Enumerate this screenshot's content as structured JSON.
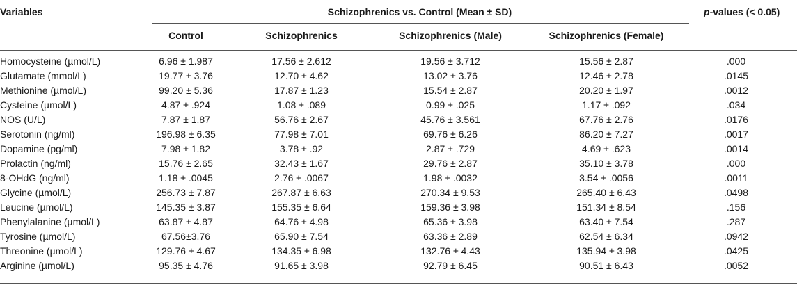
{
  "header": {
    "variables": "Variables",
    "group": "Schizophrenics vs. Control (Mean ± SD)",
    "pvalues_italic": "p",
    "pvalues_rest": "-values (< 0.05)",
    "columns": [
      "Control",
      "Schizophrenics",
      "Schizophrenics (Male)",
      "Schizophrenics (Female)"
    ]
  },
  "rows": [
    {
      "variable": "Homocysteine (µmol/L)",
      "control": "6.96 ± 1.987",
      "schizo": "17.56 ± 2.612",
      "male": "19.56 ± 3.712",
      "female": "15.56 ± 2.87",
      "p": ".000"
    },
    {
      "variable": "Glutamate (mmol/L)",
      "control": "19.77 ± 3.76",
      "schizo": "12.70 ± 4.62",
      "male": "13.02 ± 3.76",
      "female": "12.46 ± 2.78",
      "p": ".0145"
    },
    {
      "variable": "Methionine (µmol/L)",
      "control": "99.20 ± 5.36",
      "schizo": "17.87 ± 1.23",
      "male": "15.54 ± 2.87",
      "female": "20.20 ± 1.97",
      "p": ".0012"
    },
    {
      "variable": "Cysteine (µmol/L)",
      "control": "4.87 ± .924",
      "schizo": "1.08 ± .089",
      "male": "0.99 ± .025",
      "female": "1.17 ± .092",
      "p": ".034"
    },
    {
      "variable": "NOS (U/L)",
      "control": "7.87 ± 1.87",
      "schizo": "56.76 ± 2.67",
      "male": "45.76 ± 3.561",
      "female": "67.76 ± 2.76",
      "p": ".0176"
    },
    {
      "variable": "Serotonin (ng/ml)",
      "control": "196.98 ± 6.35",
      "schizo": "77.98 ± 7.01",
      "male": "69.76 ± 6.26",
      "female": "86.20 ± 7.27",
      "p": ".0017"
    },
    {
      "variable": "Dopamine (pg/ml)",
      "control": "7.98 ± 1.82",
      "schizo": "3.78 ± .92",
      "male": "2.87 ± .729",
      "female": "4.69 ± .623",
      "p": ".0014"
    },
    {
      "variable": "Prolactin (ng/ml)",
      "control": "15.76 ± 2.65",
      "schizo": "32.43 ± 1.67",
      "male": "29.76 ± 2.87",
      "female": "35.10 ± 3.78",
      "p": ".000"
    },
    {
      "variable": "8-OHdG (ng/ml)",
      "control": "1.18 ± .0045",
      "schizo": "2.76 ± .0067",
      "male": "1.98 ± .0032",
      "female": "3.54 ± .0056",
      "p": ".0011"
    },
    {
      "variable": "Glycine (µmol/L)",
      "control": "256.73 ± 7.87",
      "schizo": "267.87 ± 6.63",
      "male": "270.34 ± 9.53",
      "female": "265.40 ± 6.43",
      "p": ".0498"
    },
    {
      "variable": "Leucine (µmol/L)",
      "control": "145.35 ± 3.87",
      "schizo": "155.35 ± 6.64",
      "male": "159.36 ± 3.98",
      "female": "151.34 ± 8.54",
      "p": ".156"
    },
    {
      "variable": "Phenylalanine (µmol/L)",
      "control": "63.87 ± 4.87",
      "schizo": "64.76 ± 4.98",
      "male": "65.36 ± 3.98",
      "female": "63.40 ± 7.54",
      "p": ".287"
    },
    {
      "variable": "Tyrosine (µmol/L)",
      "control": "67.56±3.76",
      "schizo": "65.90 ± 7.54",
      "male": "63.36 ± 2.89",
      "female": "62.54 ± 6.34",
      "p": ".0942"
    },
    {
      "variable": "Threonine (µmol/L)",
      "control": "129.76 ± 4.67",
      "schizo": "134.35 ± 6.98",
      "male": "132.76 ± 4.43",
      "female": "135.94 ± 3.98",
      "p": ".0425"
    },
    {
      "variable": "Arginine (µmol/L)",
      "control": "95.35 ± 4.76",
      "schizo": "91.65 ± 3.98",
      "male": "92.79 ± 6.45",
      "female": "90.51 ± 6.43",
      "p": ".0052"
    }
  ]
}
